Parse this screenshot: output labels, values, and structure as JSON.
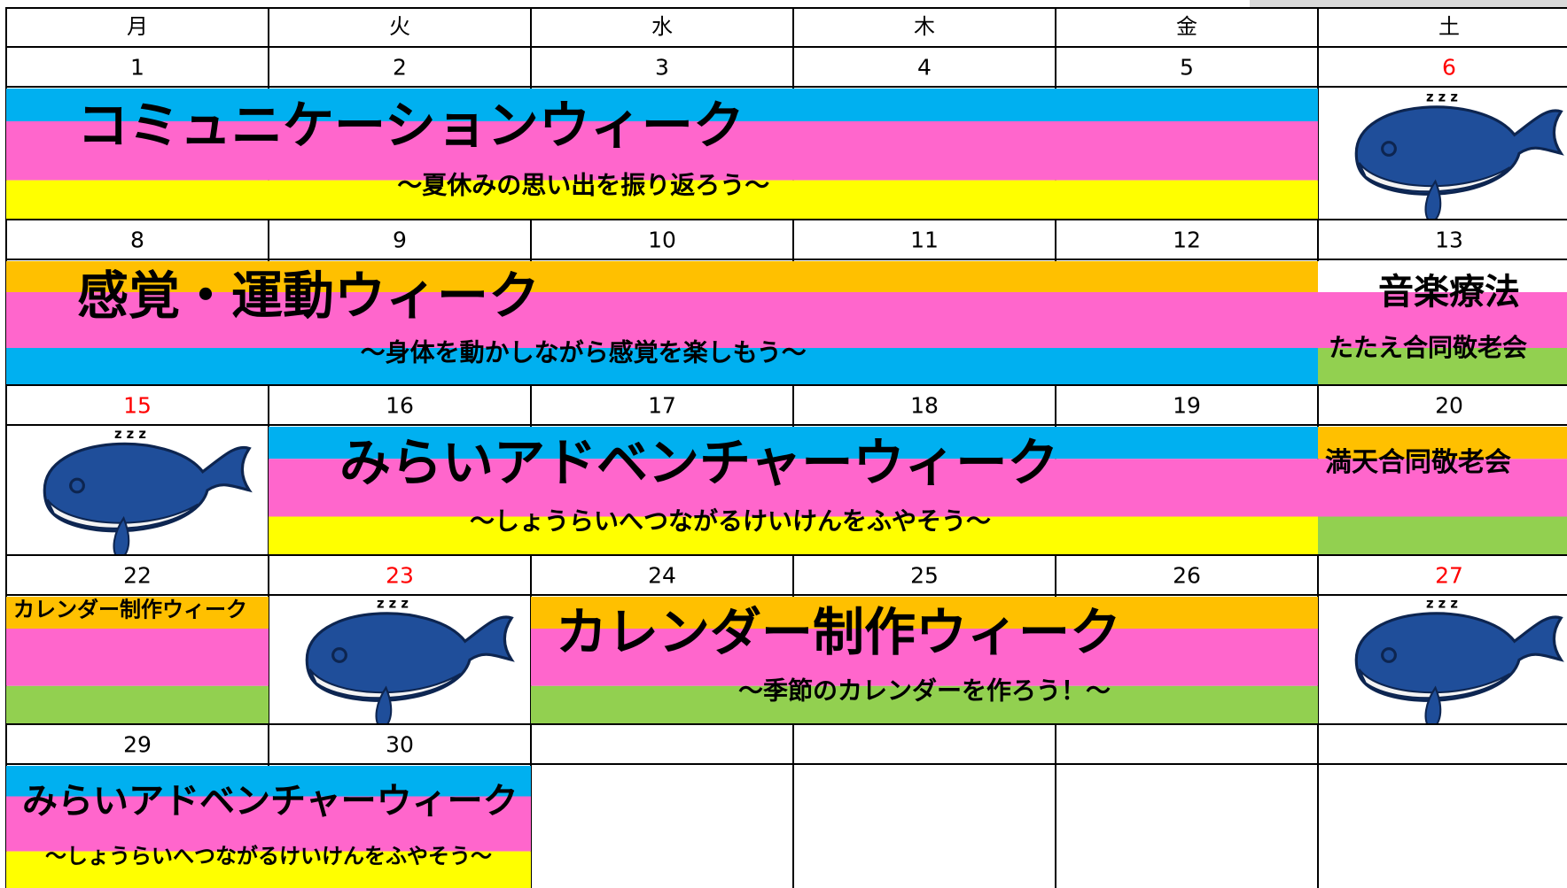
{
  "weekdays": [
    "月",
    "火",
    "水",
    "木",
    "金",
    "土"
  ],
  "weeks": [
    {
      "days": [
        {
          "date": "1",
          "color": "#000000"
        },
        {
          "date": "2",
          "color": "#000000"
        },
        {
          "date": "3",
          "color": "#000000"
        },
        {
          "date": "4",
          "color": "#000000"
        },
        {
          "date": "5",
          "color": "#000000"
        },
        {
          "date": "6",
          "color": "#ff0000"
        }
      ],
      "events": [
        {
          "title": "コミュニケーションウィーク",
          "subtitle": "～夏休みの思い出を振り返ろう～",
          "stripes": [
            "#00b0f0",
            "#ff66cc",
            "#ffff00"
          ]
        }
      ]
    },
    {
      "days": [
        {
          "date": "8",
          "color": "#000000"
        },
        {
          "date": "9",
          "color": "#000000"
        },
        {
          "date": "10",
          "color": "#000000"
        },
        {
          "date": "11",
          "color": "#000000"
        },
        {
          "date": "12",
          "color": "#000000"
        },
        {
          "date": "13",
          "color": "#000000"
        }
      ],
      "events": [
        {
          "title": "感覚・運動ウィーク",
          "subtitle": "～身体を動かしながら感覚を楽しもう～",
          "stripes": [
            "#ffc000",
            "#ff66cc",
            "#00b0f0"
          ]
        },
        {
          "title": "音楽療法",
          "subtitle": "たたえ合同敬老会",
          "stripes": [
            "#ffffff",
            "#ff66cc",
            "#92d050"
          ]
        }
      ]
    },
    {
      "days": [
        {
          "date": "15",
          "color": "#ff0000"
        },
        {
          "date": "16",
          "color": "#000000"
        },
        {
          "date": "17",
          "color": "#000000"
        },
        {
          "date": "18",
          "color": "#000000"
        },
        {
          "date": "19",
          "color": "#000000"
        },
        {
          "date": "20",
          "color": "#000000"
        }
      ],
      "events": [
        {
          "title": "みらいアドベンチャーウィーク",
          "subtitle": "～しょうらいへつながるけいけんをふやそう～",
          "stripes": [
            "#00b0f0",
            "#ff66cc",
            "#ffff00"
          ]
        },
        {
          "title": "満天合同敬老会",
          "stripes": [
            "#ffc000",
            "#ff66cc",
            "#92d050"
          ]
        }
      ]
    },
    {
      "days": [
        {
          "date": "22",
          "color": "#000000"
        },
        {
          "date": "23",
          "color": "#ff0000"
        },
        {
          "date": "24",
          "color": "#000000"
        },
        {
          "date": "25",
          "color": "#000000"
        },
        {
          "date": "26",
          "color": "#000000"
        },
        {
          "date": "27",
          "color": "#ff0000"
        }
      ],
      "events": [
        {
          "title": "カレンダー制作ウィーク",
          "stripes": [
            "#ffc000",
            "#ff66cc",
            "#92d050"
          ]
        },
        {
          "title": "カレンダー制作ウィーク",
          "subtitle": "～季節のカレンダーを作ろう！～",
          "stripes": [
            "#ffc000",
            "#ff66cc",
            "#92d050"
          ]
        }
      ]
    },
    {
      "days": [
        {
          "date": "29",
          "color": "#000000"
        },
        {
          "date": "30",
          "color": "#000000"
        }
      ],
      "events": [
        {
          "title": "みらいアドベンチャーウィーク",
          "subtitle": "～しょうらいへつながるけいけんをふやそう～",
          "stripes": [
            "#00b0f0",
            "#ff66cc",
            "#ffff00"
          ]
        }
      ]
    }
  ]
}
